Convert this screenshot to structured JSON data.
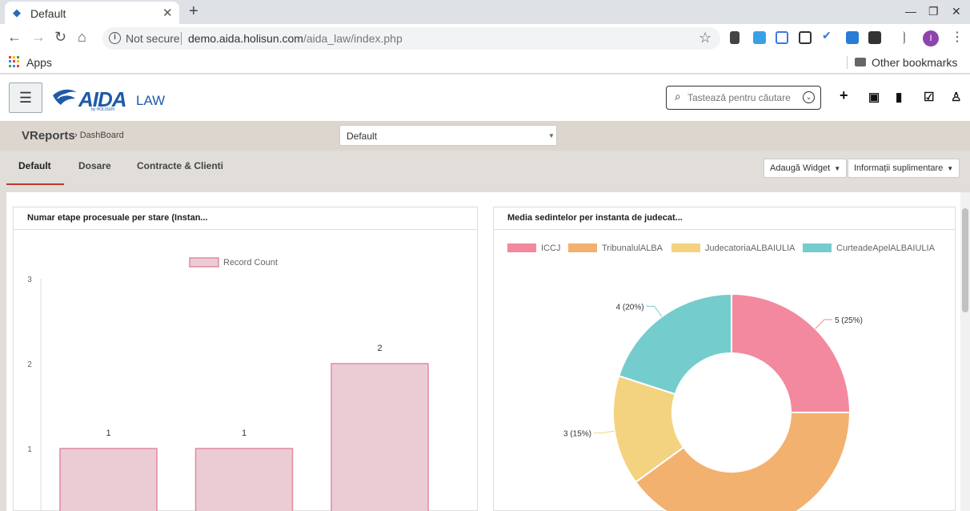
{
  "browser": {
    "tab_title": "Default",
    "tab_close": "✕",
    "new_tab": "+",
    "security_label": "Not secure",
    "url_host": "demo.aida.holisun.com",
    "url_path": "/aida_law/index.php",
    "apps_label": "Apps",
    "other_bookmarks": "Other bookmarks",
    "profile_initial": "I"
  },
  "app": {
    "logo_text": "AIDA",
    "logo_suffix": "LAW",
    "logo_sub": "by HOLISUN",
    "search_placeholder": "Tastează pentru căutare"
  },
  "breadcrumb": {
    "main": "VReports",
    "sub": "DashBoard"
  },
  "dashboard_select": {
    "value": "Default"
  },
  "tabs": [
    {
      "label": "Default"
    },
    {
      "label": "Dosare"
    },
    {
      "label": "Contracte & Clienti"
    }
  ],
  "actions": {
    "add_widget": "Adaugă Widget",
    "more_info": "Informații suplimentare"
  },
  "widgets": {
    "bar_title": "Numar etape procesuale per stare (Instan...",
    "pie_title": "Media sedintelor per instanta de judecat..."
  },
  "colors": {
    "bar_fill": "#ecccd4",
    "bar_stroke": "#e08aa0",
    "pie": [
      "#f3899f",
      "#f2b16e",
      "#f3d37f",
      "#74cccd"
    ]
  },
  "chart_data": [
    {
      "type": "bar",
      "title": "Numar etape procesuale per stare (Instan...",
      "legend": [
        "Record Count"
      ],
      "ylim": [
        0,
        3
      ],
      "yticks": [
        "1",
        "2",
        "3"
      ],
      "series": [
        {
          "name": "Record Count",
          "values": [
            1,
            1,
            2
          ]
        }
      ],
      "value_labels": [
        "1",
        "1",
        "2"
      ]
    },
    {
      "type": "pie",
      "title": "Media sedintelor per instanta de judecat...",
      "donut": true,
      "legend_position": "top",
      "labels": [
        "ICCJ",
        "TribunalulALBA",
        "JudecatoriaALBAIULIA",
        "CurteadeApelALBAIULIA"
      ],
      "values": [
        5,
        8,
        3,
        4
      ],
      "visible_labels": [
        {
          "index": 0,
          "text": "5 (25%)"
        },
        {
          "index": 2,
          "text": "3 (15%)"
        },
        {
          "index": 3,
          "text": "4 (20%)"
        }
      ]
    }
  ]
}
